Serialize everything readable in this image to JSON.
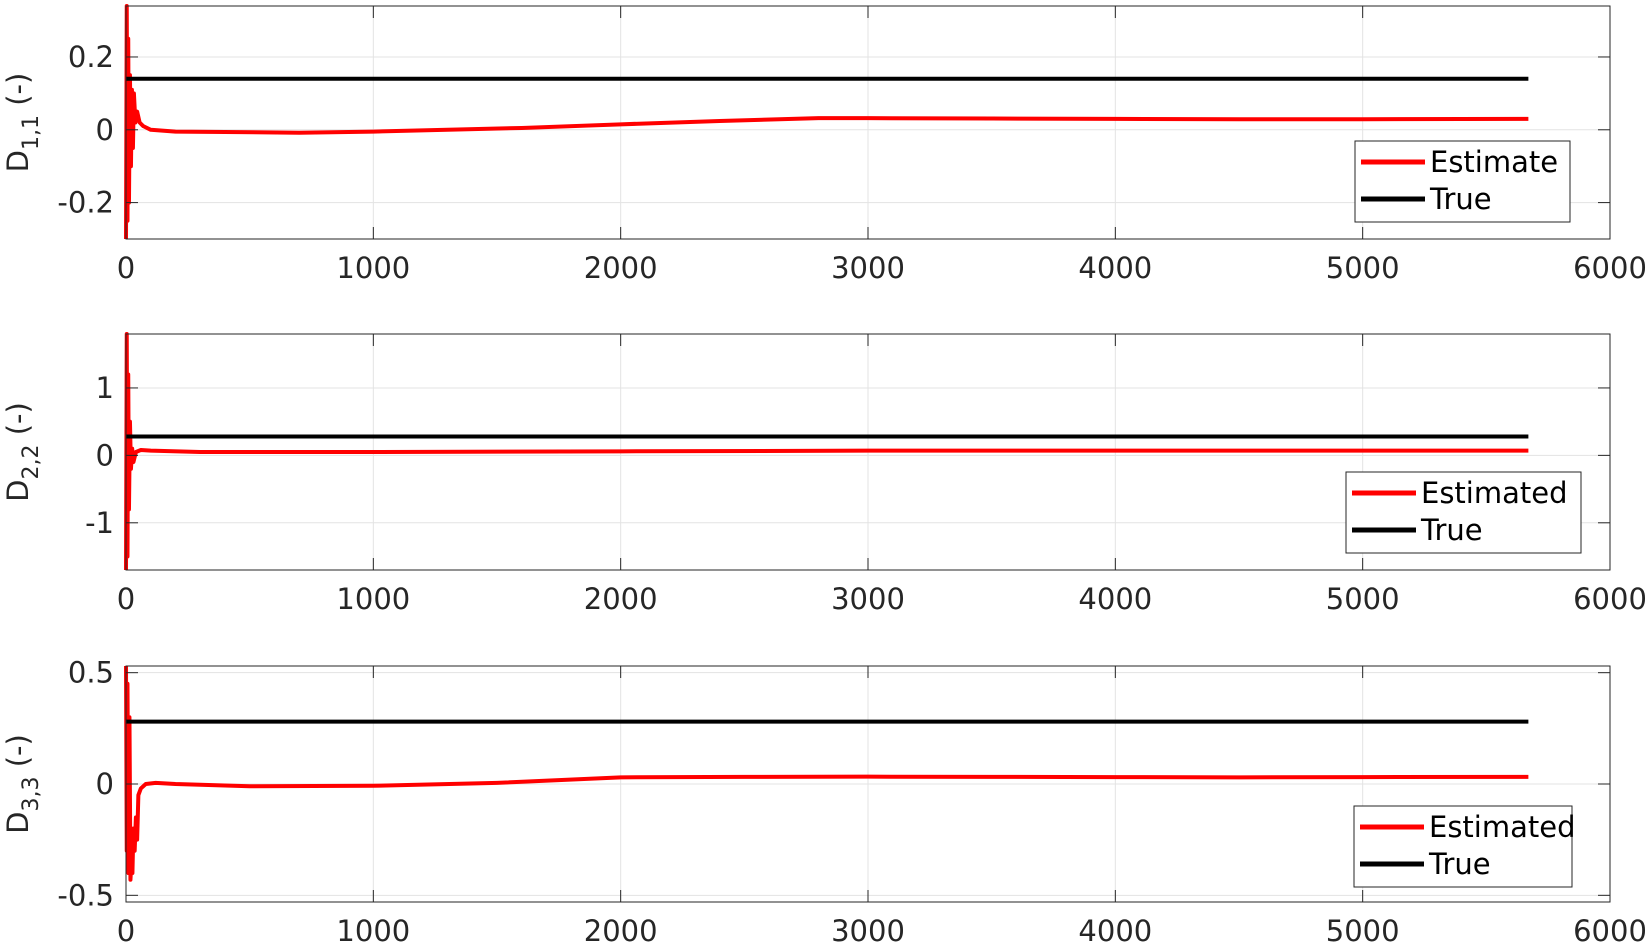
{
  "chart_data": [
    {
      "type": "line",
      "ylabel": {
        "base": "D",
        "sub": "1,1",
        "unit": " (-)"
      },
      "xlim": [
        0,
        6000
      ],
      "ylim": [
        -0.3,
        0.34
      ],
      "xticks": [
        0,
        1000,
        2000,
        3000,
        4000,
        5000,
        6000
      ],
      "yticks": [
        -0.2,
        0,
        0.2
      ],
      "ytick_labels": [
        "-0.2",
        "0",
        "0.2"
      ],
      "grid": true,
      "legend_position": "bottom-right",
      "series": [
        {
          "name": "Estimate",
          "color": "#ff0000",
          "x": [
            0,
            3,
            6,
            9,
            12,
            16,
            20,
            24,
            28,
            32,
            38,
            45,
            55,
            70,
            100,
            200,
            400,
            700,
            1000,
            1300,
            1600,
            2000,
            2400,
            2800,
            3000,
            3500,
            4000,
            4500,
            5000,
            5670
          ],
          "y": [
            -0.3,
            0.34,
            -0.25,
            0.25,
            -0.2,
            0.15,
            -0.1,
            0.11,
            -0.05,
            0.1,
            0.02,
            0.05,
            0.02,
            0.01,
            0.0,
            -0.005,
            -0.006,
            -0.008,
            -0.005,
            0.0,
            0.005,
            0.015,
            0.024,
            0.032,
            0.032,
            0.031,
            0.03,
            0.029,
            0.029,
            0.03
          ]
        },
        {
          "name": "True",
          "color": "#000000",
          "x": [
            0,
            5670
          ],
          "y": [
            0.14,
            0.14
          ]
        }
      ]
    },
    {
      "type": "line",
      "ylabel": {
        "base": "D",
        "sub": "2,2",
        "unit": " (-)"
      },
      "xlim": [
        0,
        6000
      ],
      "ylim": [
        -1.7,
        1.8
      ],
      "xticks": [
        0,
        1000,
        2000,
        3000,
        4000,
        5000,
        6000
      ],
      "yticks": [
        -1,
        0,
        1
      ],
      "ytick_labels": [
        "-1",
        "0",
        "1"
      ],
      "grid": true,
      "legend_position": "bottom-right",
      "series": [
        {
          "name": "Estimated",
          "color": "#ff0000",
          "x": [
            0,
            3,
            6,
            9,
            12,
            16,
            20,
            25,
            30,
            40,
            60,
            100,
            300,
            1000,
            2000,
            3000,
            4000,
            5000,
            5670
          ],
          "y": [
            -1.7,
            1.8,
            -1.5,
            1.2,
            -0.8,
            0.5,
            -0.2,
            0.1,
            -0.1,
            0.05,
            0.08,
            0.07,
            0.05,
            0.05,
            0.06,
            0.07,
            0.07,
            0.07,
            0.07
          ]
        },
        {
          "name": "True",
          "color": "#000000",
          "x": [
            0,
            5670
          ],
          "y": [
            0.28,
            0.28
          ]
        }
      ]
    },
    {
      "type": "line",
      "ylabel": {
        "base": "D",
        "sub": "3,3",
        "unit": " (-)"
      },
      "xlim": [
        0,
        6000
      ],
      "ylim": [
        -0.53,
        0.53
      ],
      "xticks": [
        0,
        1000,
        2000,
        3000,
        4000,
        5000,
        6000
      ],
      "yticks": [
        -0.5,
        0,
        0.5
      ],
      "ytick_labels": [
        "-0.5",
        "0",
        "0.5"
      ],
      "grid": true,
      "legend_position": "bottom-right",
      "series": [
        {
          "name": "Estimated",
          "color": "#ff0000",
          "x": [
            0,
            3,
            6,
            10,
            14,
            18,
            22,
            26,
            30,
            35,
            40,
            45,
            50,
            60,
            80,
            120,
            200,
            500,
            1000,
            1500,
            2000,
            2500,
            3000,
            3500,
            4000,
            4500,
            5000,
            5670
          ],
          "y": [
            0.53,
            -0.3,
            0.45,
            -0.4,
            0.3,
            -0.43,
            -0.35,
            -0.4,
            -0.2,
            -0.3,
            -0.15,
            -0.25,
            -0.05,
            -0.02,
            0.0,
            0.005,
            0.0,
            -0.01,
            -0.008,
            0.005,
            0.03,
            0.032,
            0.033,
            0.032,
            0.031,
            0.03,
            0.031,
            0.032
          ]
        },
        {
          "name": "True",
          "color": "#000000",
          "x": [
            0,
            5670
          ],
          "y": [
            0.28,
            0.28
          ]
        }
      ]
    }
  ]
}
